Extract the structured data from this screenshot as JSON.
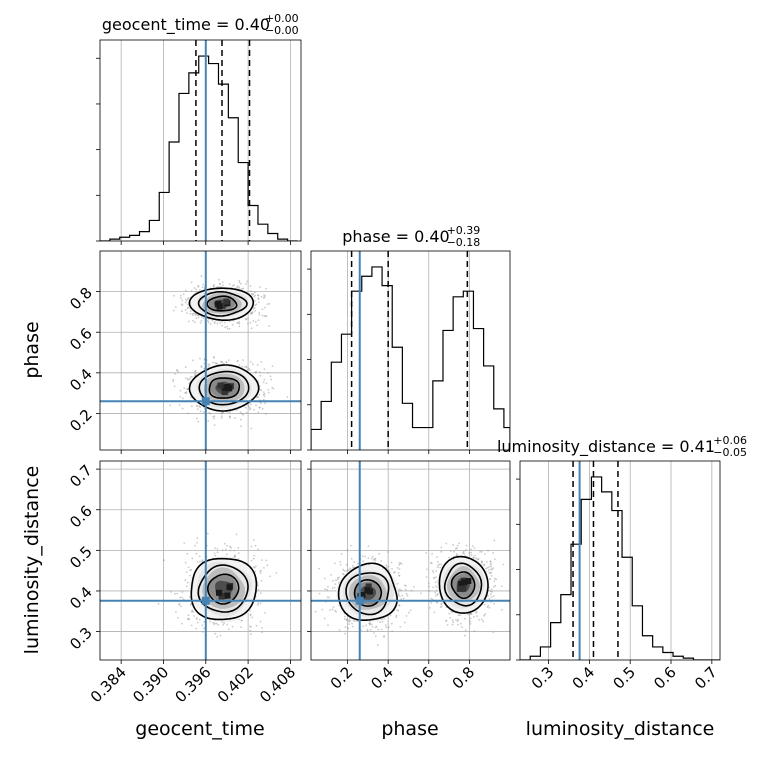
{
  "chart_data": {
    "type": "corner",
    "parameters": [
      "geocent_time",
      "phase",
      "luminosity_distance"
    ],
    "truths": {
      "geocent_time": 0.396,
      "phase": 0.26,
      "luminosity_distance": 0.376
    },
    "titles": [
      {
        "param": "geocent_time",
        "text": "geocent_time = 0.40",
        "plus": "+0.00",
        "minus": "−0.00"
      },
      {
        "param": "phase",
        "text": "phase = 0.40",
        "plus": "+0.39",
        "minus": "−0.18"
      },
      {
        "param": "luminosity_distance",
        "text": "luminosity_distance = 0.41",
        "plus": "+0.06",
        "minus": "−0.05"
      }
    ],
    "axes": {
      "geocent_time": {
        "range": [
          0.381,
          0.4095
        ],
        "ticks": [
          0.384,
          0.39,
          0.396,
          0.402,
          0.408
        ],
        "tick_labels": [
          "0.384",
          "0.390",
          "0.396",
          "0.402",
          "0.408"
        ],
        "label": "geocent_time"
      },
      "phase": {
        "range": [
          0.02,
          1.0
        ],
        "ticks": [
          0.2,
          0.4,
          0.6,
          0.8
        ],
        "tick_labels": [
          "0.2",
          "0.4",
          "0.6",
          "0.8"
        ],
        "label": "phase"
      },
      "luminosity_distance": {
        "range": [
          0.23,
          0.72
        ],
        "ticks": [
          0.3,
          0.4,
          0.5,
          0.6,
          0.7
        ],
        "tick_labels": [
          "0.3",
          "0.4",
          "0.5",
          "0.6",
          "0.7"
        ],
        "label": "luminosity_distance"
      }
    },
    "histograms": {
      "geocent_time": {
        "bin_edges": [
          0.381,
          0.3824,
          0.3838,
          0.3852,
          0.3866,
          0.388,
          0.3894,
          0.3908,
          0.3922,
          0.3936,
          0.395,
          0.3964,
          0.3978,
          0.3992,
          0.4006,
          0.402,
          0.4034,
          0.4048,
          0.4062,
          0.4076,
          0.409
        ],
        "counts": [
          0,
          0.01,
          0.02,
          0.03,
          0.05,
          0.11,
          0.26,
          0.53,
          0.79,
          0.9,
          0.99,
          0.95,
          0.84,
          0.66,
          0.42,
          0.19,
          0.09,
          0.04,
          0.01,
          0
        ],
        "quantile_lines": [
          0.3946,
          0.3983,
          0.4022
        ]
      },
      "phase": {
        "bin_edges": [
          0.02,
          0.07,
          0.12,
          0.17,
          0.22,
          0.27,
          0.32,
          0.37,
          0.42,
          0.47,
          0.52,
          0.57,
          0.62,
          0.67,
          0.72,
          0.77,
          0.82,
          0.87,
          0.92,
          0.97,
          1.0
        ],
        "counts": [
          0.11,
          0.26,
          0.47,
          0.62,
          0.85,
          0.93,
          0.98,
          0.88,
          0.55,
          0.25,
          0.12,
          0.12,
          0.37,
          0.64,
          0.82,
          0.85,
          0.65,
          0.45,
          0.22,
          0.12
        ],
        "quantile_lines": [
          0.22,
          0.4,
          0.79
        ]
      },
      "luminosity_distance": {
        "bin_edges": [
          0.23,
          0.255,
          0.28,
          0.305,
          0.33,
          0.355,
          0.38,
          0.405,
          0.43,
          0.455,
          0.48,
          0.505,
          0.53,
          0.555,
          0.58,
          0.605,
          0.63,
          0.655,
          0.68,
          0.705,
          0.72
        ],
        "counts": [
          0,
          0.02,
          0.07,
          0.2,
          0.35,
          0.62,
          0.86,
          0.98,
          0.9,
          0.8,
          0.55,
          0.29,
          0.13,
          0.07,
          0.04,
          0.02,
          0.01,
          0,
          0,
          0
        ],
        "quantile_lines": [
          0.36,
          0.41,
          0.47
        ]
      }
    },
    "contours_2d": [
      {
        "x_param": "geocent_time",
        "y_param": "phase",
        "modes": [
          {
            "center": [
              0.3983,
              0.74
            ],
            "spread": [
              0.0045,
              0.082
            ]
          },
          {
            "center": [
              0.3986,
              0.325
            ],
            "spread": [
              0.0048,
              0.115
            ]
          }
        ]
      },
      {
        "x_param": "geocent_time",
        "y_param": "luminosity_distance",
        "modes": [
          {
            "center": [
              0.3985,
              0.405
            ],
            "spread": [
              0.0048,
              0.08
            ]
          }
        ]
      },
      {
        "x_param": "phase",
        "y_param": "luminosity_distance",
        "modes": [
          {
            "center": [
              0.3,
              0.395
            ],
            "spread": [
              0.15,
              0.07
            ]
          },
          {
            "center": [
              0.77,
              0.415
            ],
            "spread": [
              0.125,
              0.07
            ]
          }
        ]
      }
    ],
    "truth_color": "#4682b4",
    "grid": true,
    "legend": "none"
  }
}
